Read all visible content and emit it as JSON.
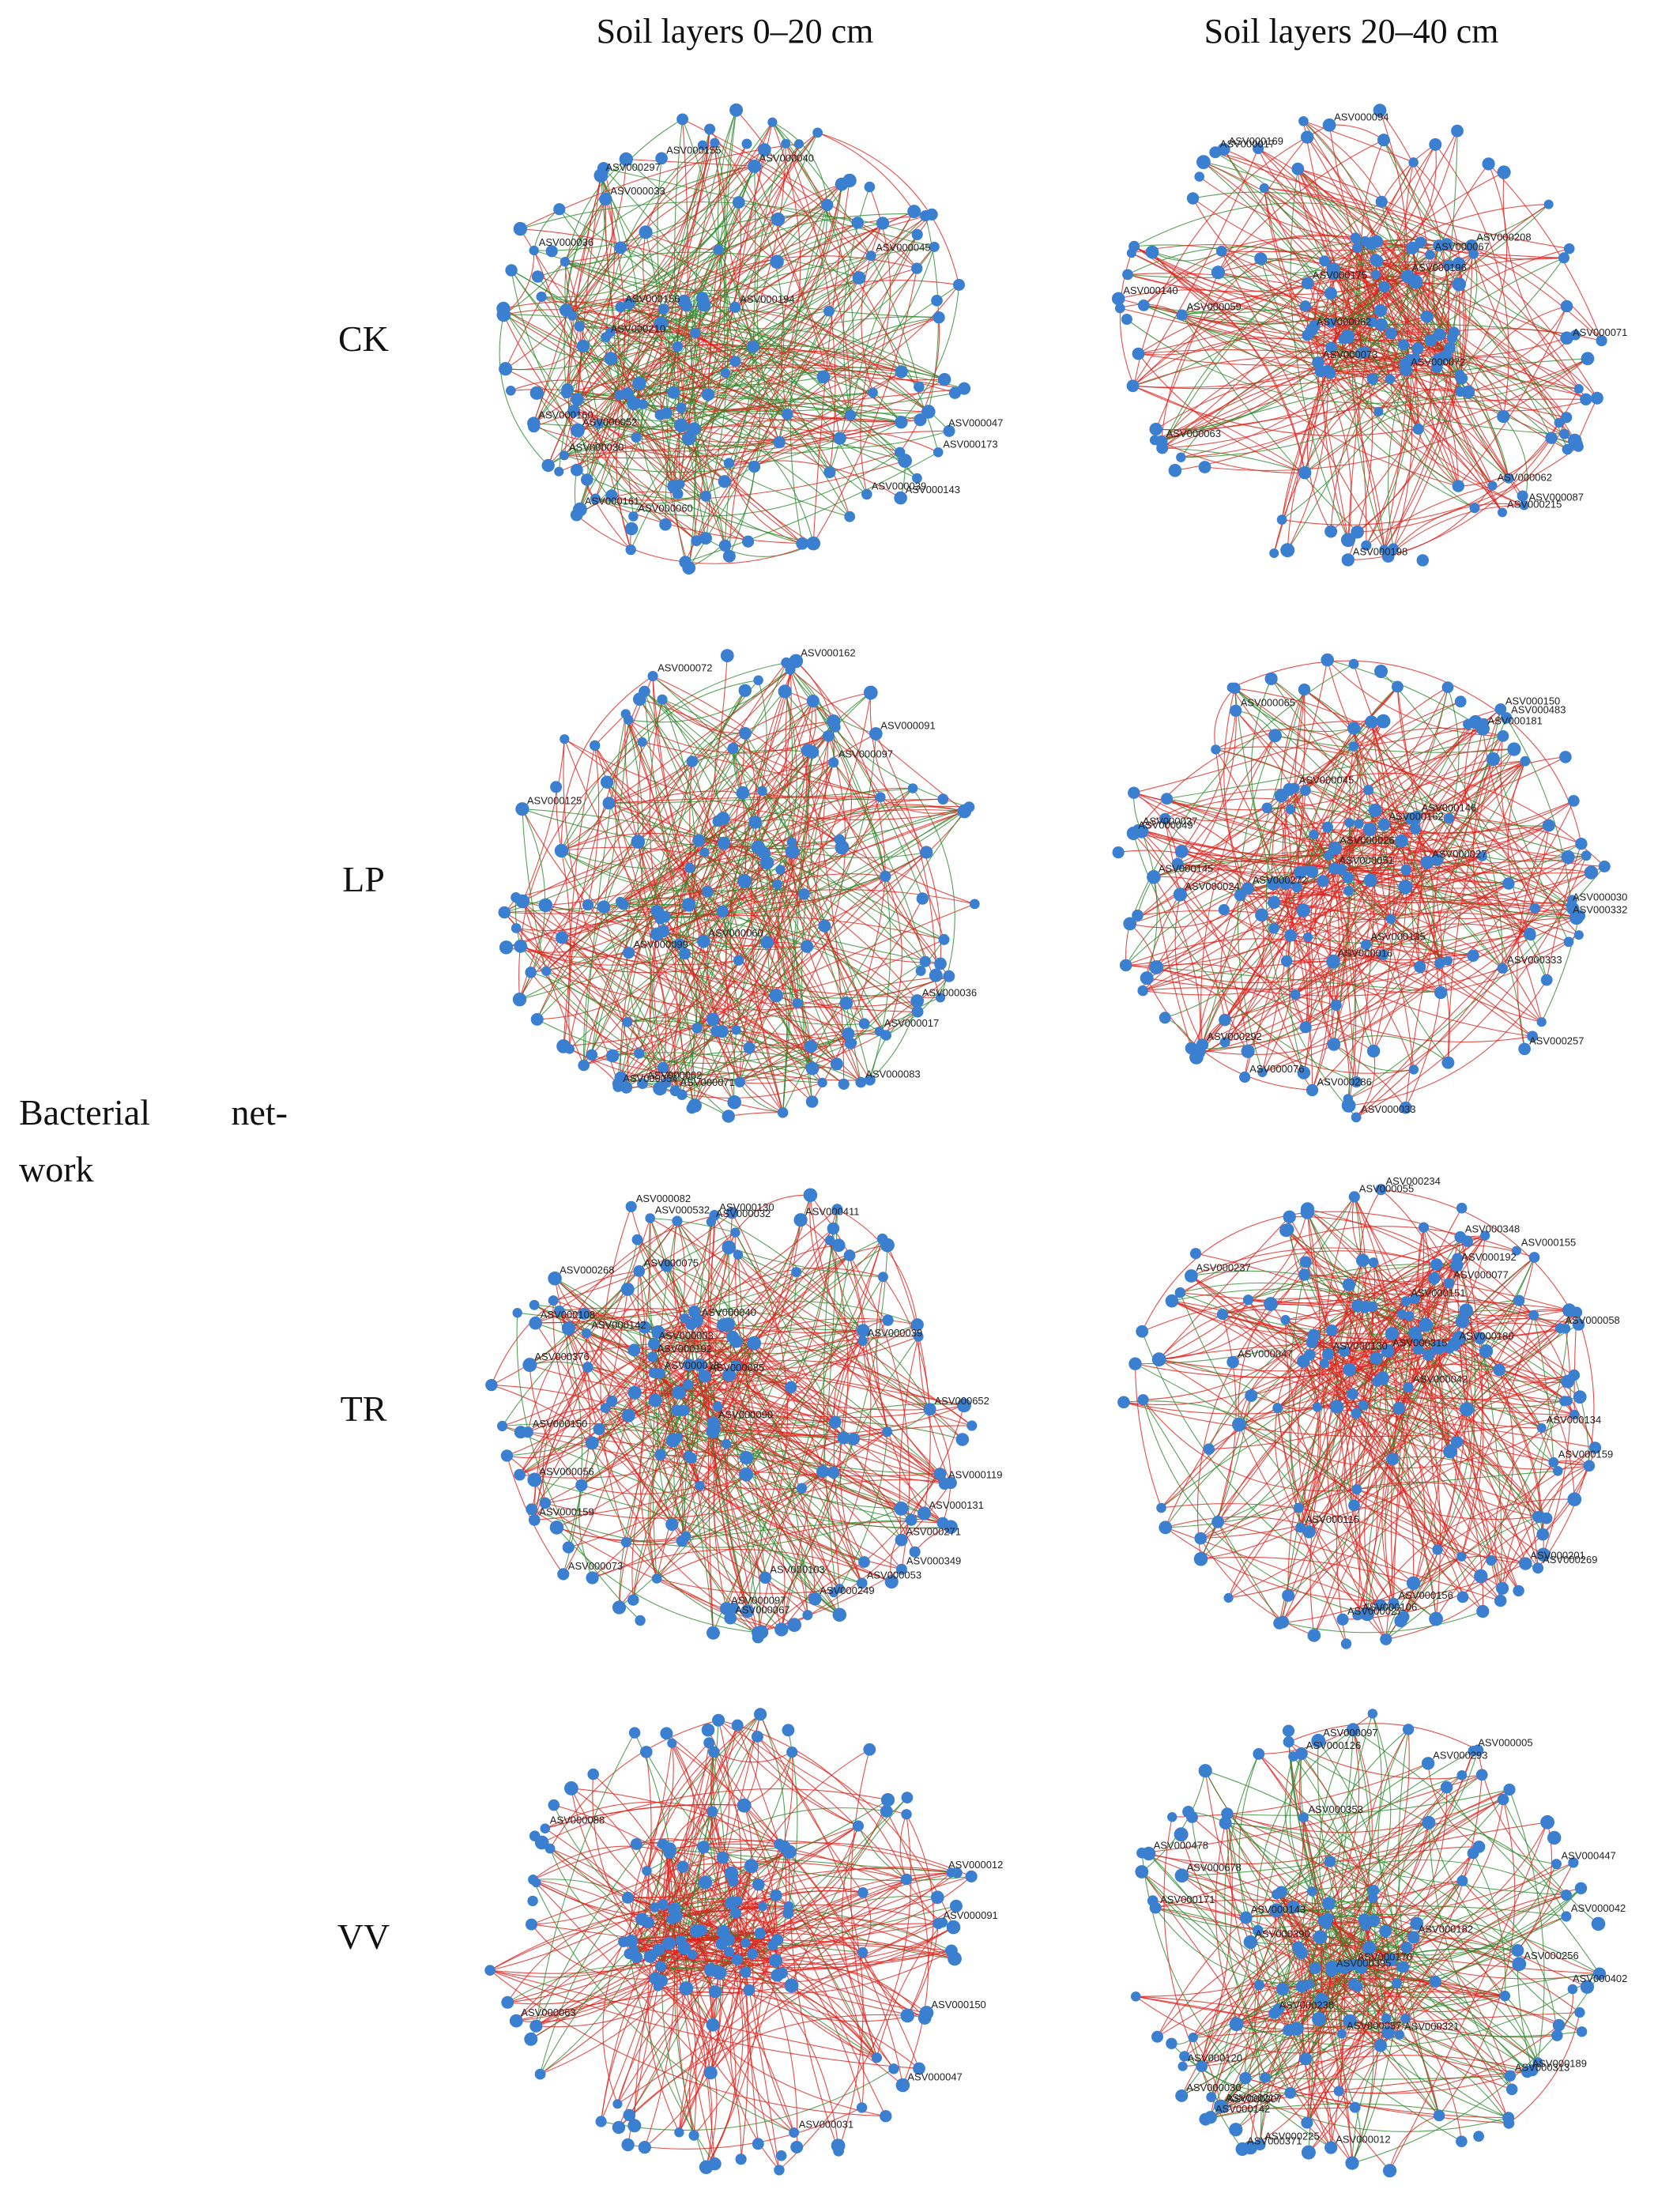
{
  "columns": [
    "Soil layers 0–20 cm",
    "Soil layers 20–40 cm"
  ],
  "rows": [
    "CK",
    "LP",
    "TR",
    "VV"
  ],
  "side_label": {
    "line1_a": "Bacterial",
    "line1_b": "net-",
    "line2": "work"
  },
  "colors": {
    "node": "#3b7fd0",
    "positive_edge": "#e0221c",
    "negative_edge": "#2e8b2e",
    "label": "#222222"
  },
  "networks": [
    {
      "row": "CK",
      "layer": "0–20 cm",
      "labels": [
        "ASV000173",
        "ASV000143",
        "ASV000161",
        "ASV000036",
        "ASV000039",
        "ASV000047",
        "ASV000297",
        "ASV000060",
        "ASV000160",
        "ASV000030",
        "ASV000040",
        "ASV000194",
        "ASV000156",
        "ASV000045",
        "ASV000210",
        "ASV000155",
        "ASV000052",
        "ASV000033"
      ]
    },
    {
      "row": "CK",
      "layer": "20–40 cm",
      "labels": [
        "ASV000198",
        "ASV000063",
        "ASV000087",
        "ASV000215",
        "ASV000062",
        "ASV000017",
        "ASV000140",
        "ASV000094",
        "ASV000071",
        "ASV000169",
        "ASV000175",
        "ASV000072",
        "ASV000059",
        "ASV000062",
        "ASV000208",
        "ASV000196",
        "ASV000067",
        "ASV000073"
      ]
    },
    {
      "row": "LP",
      "layer": "0–20 cm",
      "labels": [
        "ASV000071",
        "ASV000036",
        "ASV000072",
        "ASV000062",
        "ASV000017",
        "ASV000083",
        "ASV000125",
        "ASV000091",
        "ASV000054",
        "ASV000162",
        "ASV000097",
        "ASV000060",
        "ASV000099"
      ]
    },
    {
      "row": "LP",
      "layer": "20–40 cm",
      "labels": [
        "ASV000030",
        "ASV000483",
        "ASV000286",
        "ASV000145",
        "ASV000257",
        "ASV000332",
        "ASV000150",
        "ASV000076",
        "ASV000181",
        "ASV000037",
        "ASV000027",
        "ASV000026",
        "ASV000162",
        "ASV000045",
        "ASV000333",
        "ASV000146",
        "ASV000135",
        "ASV000016",
        "ASV000024",
        "ASV000051",
        "ASV000272",
        "ASV000033",
        "ASV000292",
        "ASV000065",
        "ASV000049"
      ]
    },
    {
      "row": "TR",
      "layer": "0–20 cm",
      "labels": [
        "ASV000249",
        "ASV000053",
        "ASV000119",
        "ASV000131",
        "ASV000349",
        "ASV000268",
        "ASV000130",
        "ASV000032",
        "ASV000159",
        "ASV000411",
        "ASV000103",
        "ASV000142",
        "ASV000652",
        "ASV000090",
        "ASV000085",
        "ASV000039",
        "ASV000018",
        "ASV000040",
        "ASV000003",
        "ASV000192",
        "ASV000075",
        "ASV000097",
        "ASV000271",
        "ASV000073",
        "ASV000067",
        "ASV000108",
        "ASV000376",
        "ASV000532",
        "ASV000150",
        "ASV000056",
        "ASV000082"
      ]
    },
    {
      "row": "TR",
      "layer": "20–40 cm",
      "labels": [
        "ASV000156",
        "ASV000348",
        "ASV000237",
        "ASV000106",
        "ASV000269",
        "ASV000201",
        "ASV000234",
        "ASV000155",
        "ASV000055",
        "ASV000058",
        "ASV000159",
        "ASV000077",
        "ASV000180",
        "ASV000042",
        "ASV000130",
        "ASV000115",
        "ASV000151",
        "ASV000315",
        "ASV000192",
        "ASV000134",
        "ASV000047",
        "ASV000027"
      ]
    },
    {
      "row": "VV",
      "layer": "0–20 cm",
      "labels": [
        "ASV000012",
        "ASV000088",
        "ASV000031",
        "ASV000063",
        "ASV000047",
        "ASV000091",
        "ASV000150"
      ]
    },
    {
      "row": "VV",
      "layer": "20–40 cm",
      "labels": [
        "ASV000126",
        "ASV000402",
        "ASV000142",
        "ASV000293",
        "ASV000189",
        "ASV000217",
        "ASV000030",
        "ASV000447",
        "ASV000313",
        "ASV000478",
        "ASV000390",
        "ASV000182",
        "ASV000057",
        "ASV000321",
        "ASV000256",
        "ASV000353",
        "ASV000143",
        "ASV000238",
        "ASV000170",
        "ASV000395",
        "ASV000678",
        "ASV000012",
        "ASV000371",
        "ASV000171",
        "ASV000120",
        "ASV000225",
        "ASV000005",
        "ASV000097",
        "ASV000042",
        "ASV000307"
      ]
    }
  ]
}
